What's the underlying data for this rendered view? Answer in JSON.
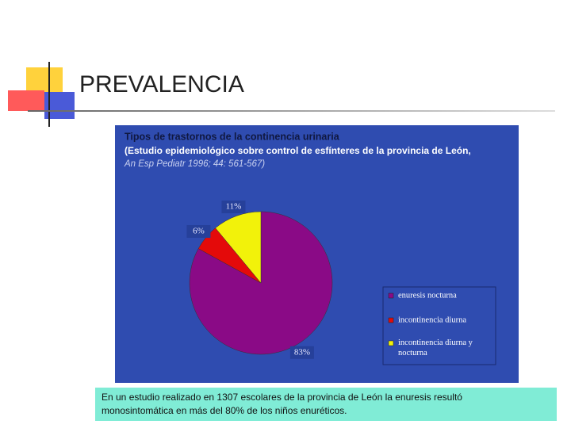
{
  "slide_title": "PREVALENCIA",
  "caption": [
    "En un estudio realizado en 1307 escolares de la provincia de León la enuresis resultó",
    "monosintomática en más del 80% de los niños enuréticos."
  ],
  "chart_data": {
    "type": "pie",
    "title": "Tipos de trastornos de la continencia urinaria",
    "subtitle": "(Estudio epidemiológico sobre control de esfínteres de la provincia de León,",
    "source": "An Esp Pediatr 1996; 44: 561-567)",
    "categories": [
      "enuresis nocturna",
      "incontinencia diurna",
      "incontinencia diurna y nocturna"
    ],
    "values": [
      83,
      6,
      11
    ],
    "value_labels": [
      "83%",
      "6%",
      "11%"
    ],
    "colors": [
      "#8a0a86",
      "#e40a0a",
      "#f2f20a"
    ],
    "legend": "right"
  }
}
